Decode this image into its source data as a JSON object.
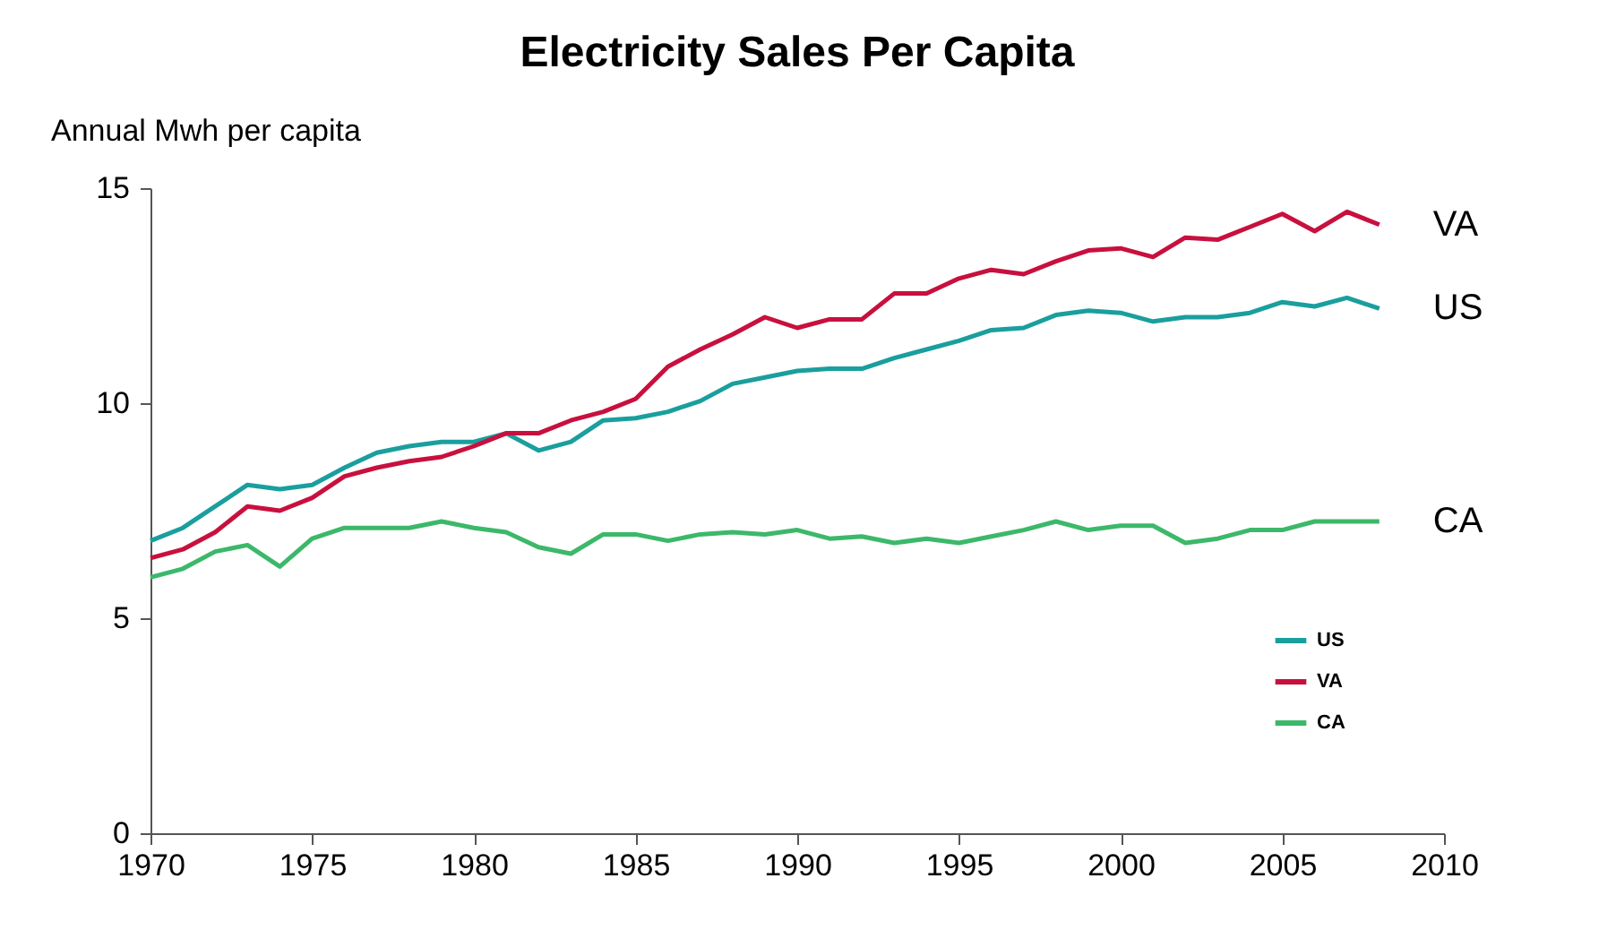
{
  "chart_data": {
    "type": "line",
    "title": "Electricity Sales Per Capita",
    "ylabel": "Annual Mwh per capita",
    "x": [
      1970,
      1971,
      1972,
      1973,
      1974,
      1975,
      1976,
      1977,
      1978,
      1979,
      1980,
      1981,
      1982,
      1983,
      1984,
      1985,
      1986,
      1987,
      1988,
      1989,
      1990,
      1991,
      1992,
      1993,
      1994,
      1995,
      1996,
      1997,
      1998,
      1999,
      2000,
      2001,
      2002,
      2003,
      2004,
      2005,
      2006,
      2007,
      2008
    ],
    "series": [
      {
        "name": "US",
        "color": "#1a9e9e",
        "values": [
          6.8,
          7.1,
          7.6,
          8.1,
          8.0,
          8.1,
          8.5,
          8.85,
          9.0,
          9.1,
          9.1,
          9.3,
          8.9,
          9.1,
          9.6,
          9.65,
          9.8,
          10.05,
          10.45,
          10.6,
          10.75,
          10.8,
          10.8,
          11.05,
          11.25,
          11.45,
          11.7,
          11.75,
          12.05,
          12.15,
          12.1,
          11.9,
          12.0,
          12.0,
          12.1,
          12.35,
          12.25,
          12.45,
          12.2
        ]
      },
      {
        "name": "VA",
        "color": "#c8103e",
        "values": [
          6.4,
          6.6,
          7.0,
          7.6,
          7.5,
          7.8,
          8.3,
          8.5,
          8.65,
          8.75,
          9.0,
          9.3,
          9.3,
          9.6,
          9.8,
          10.1,
          10.85,
          11.25,
          11.6,
          12.0,
          11.75,
          11.95,
          11.95,
          12.55,
          12.55,
          12.9,
          13.1,
          13.0,
          13.3,
          13.55,
          13.6,
          13.4,
          13.85,
          13.8,
          14.1,
          14.4,
          14.0,
          14.45,
          14.15
        ]
      },
      {
        "name": "CA",
        "color": "#3cb86a",
        "values": [
          5.95,
          6.15,
          6.55,
          6.7,
          6.2,
          6.85,
          7.1,
          7.1,
          7.1,
          7.25,
          7.1,
          7.0,
          6.65,
          6.5,
          6.95,
          6.95,
          6.8,
          6.95,
          7.0,
          6.95,
          7.05,
          6.85,
          6.9,
          6.75,
          6.85,
          6.75,
          6.9,
          7.05,
          7.25,
          7.05,
          7.15,
          7.15,
          6.75,
          6.85,
          7.05,
          7.05,
          7.25,
          7.25,
          7.25
        ]
      }
    ],
    "xlim": [
      1970,
      2010
    ],
    "xticks": [
      1970,
      1975,
      1980,
      1985,
      1990,
      1995,
      2000,
      2005,
      2010
    ],
    "ylim": [
      0,
      15
    ],
    "yticks": [
      0,
      5,
      10,
      15
    ],
    "legend": "bottom right"
  }
}
